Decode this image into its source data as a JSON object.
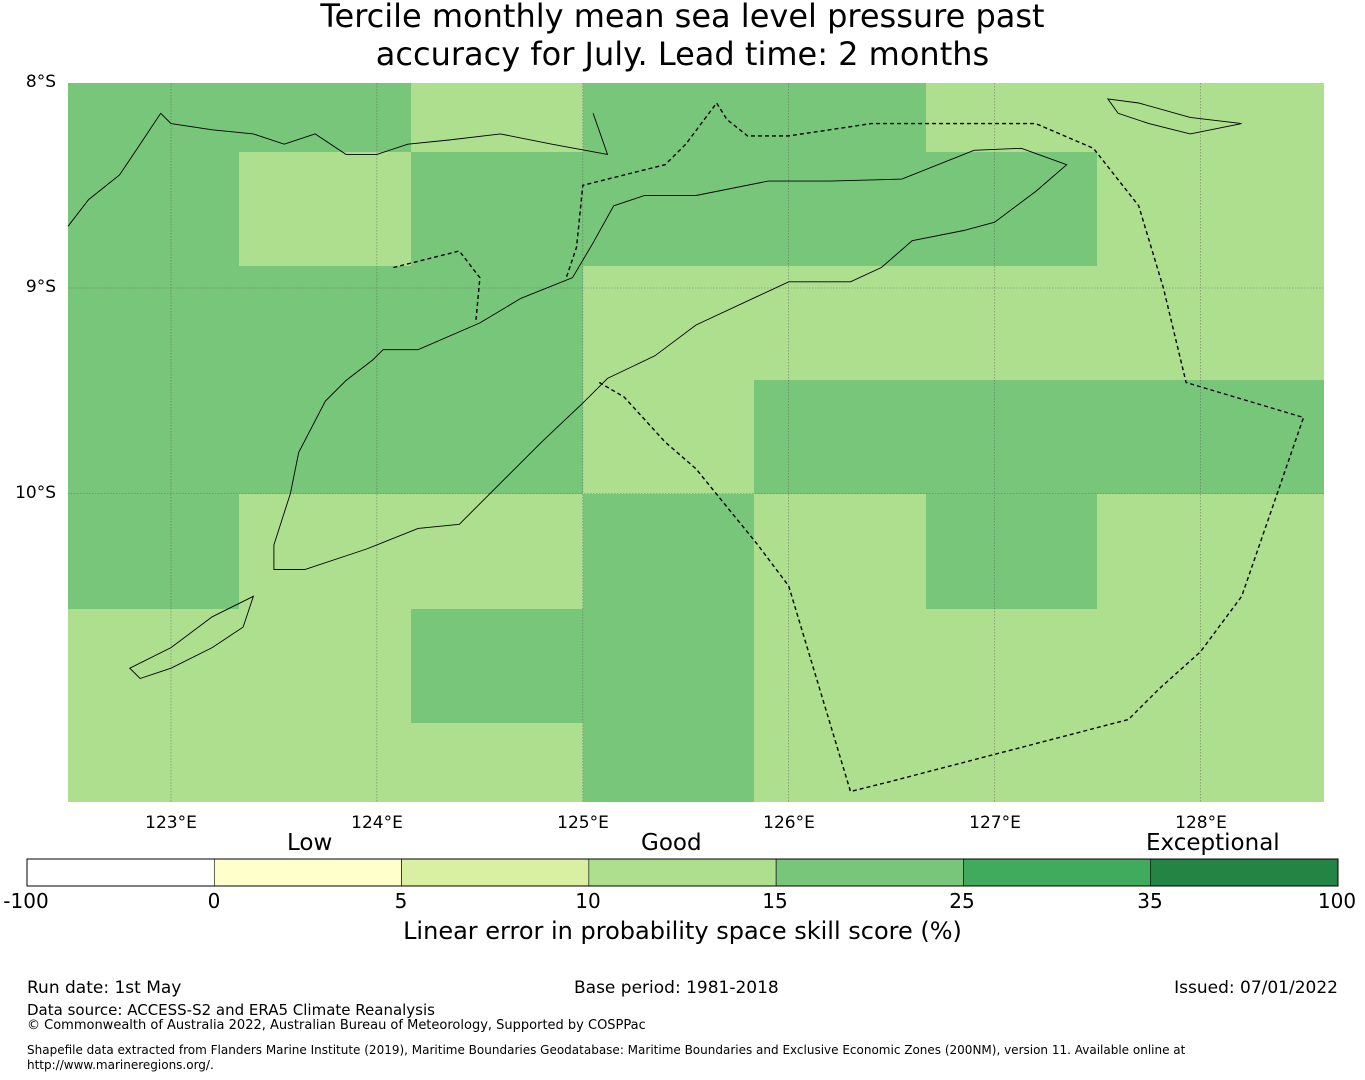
{
  "title": {
    "line1": "Tercile monthly mean sea level pressure past",
    "line2": "accuracy for July. Lead time: 2 months"
  },
  "map": {
    "lat_labels": [
      "8°S",
      "9°S",
      "10°S"
    ],
    "lon_labels": [
      "123°E",
      "124°E",
      "125°E",
      "126°E",
      "127°E",
      "128°E"
    ],
    "extent": {
      "lon_min": 122.5,
      "lon_max": 128.6,
      "lat_max": -8.0,
      "lat_min": -11.5
    },
    "cell_colors": {
      "10-15": "#addf8e",
      "15-25": "#78c679"
    },
    "skill_grid_bins": [
      [
        "15-25",
        "15-25",
        "10-15",
        "15-25",
        "15-25",
        "10-15",
        "10-15"
      ],
      [
        "15-25",
        "10-15",
        "15-25",
        "15-25",
        "15-25",
        "15-25",
        "10-15"
      ],
      [
        "15-25",
        "15-25",
        "15-25",
        "10-15",
        "10-15",
        "10-15",
        "10-15"
      ],
      [
        "15-25",
        "15-25",
        "15-25",
        "10-15",
        "15-25",
        "15-25",
        "15-25"
      ],
      [
        "15-25",
        "10-15",
        "10-15",
        "15-25",
        "10-15",
        "15-25",
        "10-15"
      ],
      [
        "10-15",
        "10-15",
        "15-25",
        "15-25",
        "10-15",
        "10-15",
        "10-15"
      ],
      [
        "10-15",
        "10-15",
        "10-15",
        "15-25",
        "10-15",
        "10-15",
        "10-15"
      ]
    ],
    "eez_boundary": [
      [
        125.08,
        -9.46
      ],
      [
        125.2,
        -9.53
      ],
      [
        125.4,
        -9.75
      ],
      [
        125.55,
        -9.88
      ],
      [
        125.85,
        -10.25
      ],
      [
        126.0,
        -10.45
      ],
      [
        126.3,
        -11.45
      ],
      [
        126.5,
        -11.4
      ],
      [
        127.65,
        -11.1
      ],
      [
        127.8,
        -10.95
      ],
      [
        128.0,
        -10.77
      ],
      [
        128.2,
        -10.5
      ],
      [
        128.5,
        -9.63
      ],
      [
        127.93,
        -9.46
      ],
      [
        127.82,
        -9.0
      ],
      [
        127.7,
        -8.6
      ],
      [
        127.48,
        -8.32
      ],
      [
        127.2,
        -8.2
      ],
      [
        126.4,
        -8.2
      ],
      [
        126.0,
        -8.26
      ],
      [
        125.8,
        -8.26
      ],
      [
        125.7,
        -8.18
      ],
      [
        125.65,
        -8.1
      ],
      [
        125.5,
        -8.3
      ],
      [
        125.4,
        -8.4
      ],
      [
        125.0,
        -8.5
      ],
      [
        124.97,
        -8.8
      ],
      [
        124.92,
        -8.95
      ]
    ],
    "border_segment": [
      [
        124.08,
        -8.9
      ],
      [
        124.4,
        -8.82
      ],
      [
        124.5,
        -8.95
      ],
      [
        124.48,
        -9.17
      ]
    ],
    "timor_outline": [
      [
        124.03,
        -9.3
      ],
      [
        124.2,
        -9.3
      ],
      [
        124.5,
        -9.17
      ],
      [
        124.7,
        -9.05
      ],
      [
        124.95,
        -8.95
      ],
      [
        125.05,
        -8.78
      ],
      [
        125.15,
        -8.6
      ],
      [
        125.3,
        -8.55
      ],
      [
        125.55,
        -8.55
      ],
      [
        125.9,
        -8.48
      ],
      [
        126.2,
        -8.48
      ],
      [
        126.55,
        -8.47
      ],
      [
        126.9,
        -8.33
      ],
      [
        127.13,
        -8.32
      ],
      [
        127.35,
        -8.4
      ],
      [
        127.2,
        -8.53
      ],
      [
        127.0,
        -8.68
      ],
      [
        126.85,
        -8.72
      ],
      [
        126.6,
        -8.77
      ],
      [
        126.45,
        -8.9
      ],
      [
        126.3,
        -8.97
      ],
      [
        126.0,
        -8.97
      ],
      [
        125.85,
        -9.04
      ],
      [
        125.55,
        -9.18
      ],
      [
        125.35,
        -9.33
      ],
      [
        125.12,
        -9.44
      ],
      [
        125.0,
        -9.56
      ],
      [
        124.8,
        -9.75
      ],
      [
        124.6,
        -9.95
      ],
      [
        124.4,
        -10.15
      ],
      [
        124.2,
        -10.17
      ],
      [
        123.95,
        -10.27
      ],
      [
        123.65,
        -10.37
      ],
      [
        123.5,
        -10.37
      ],
      [
        123.5,
        -10.25
      ],
      [
        123.58,
        -10.0
      ],
      [
        123.62,
        -9.8
      ],
      [
        123.75,
        -9.55
      ],
      [
        123.85,
        -9.45
      ],
      [
        123.98,
        -9.35
      ]
    ],
    "north_coast": [
      [
        122.5,
        -8.7
      ],
      [
        122.6,
        -8.57
      ],
      [
        122.75,
        -8.45
      ],
      [
        122.85,
        -8.3
      ],
      [
        122.95,
        -8.15
      ],
      [
        123.0,
        -8.2
      ],
      [
        123.2,
        -8.23
      ],
      [
        123.4,
        -8.25
      ],
      [
        123.55,
        -8.3
      ],
      [
        123.7,
        -8.25
      ],
      [
        123.85,
        -8.35
      ],
      [
        124.0,
        -8.35
      ],
      [
        124.15,
        -8.3
      ],
      [
        124.35,
        -8.28
      ],
      [
        124.6,
        -8.25
      ],
      [
        124.85,
        -8.3
      ],
      [
        125.12,
        -8.35
      ],
      [
        125.05,
        -8.15
      ]
    ],
    "rote_outline": [
      [
        122.8,
        -10.85
      ],
      [
        123.0,
        -10.75
      ],
      [
        123.2,
        -10.6
      ],
      [
        123.4,
        -10.5
      ],
      [
        123.35,
        -10.65
      ],
      [
        123.2,
        -10.75
      ],
      [
        123.0,
        -10.85
      ],
      [
        122.85,
        -10.9
      ]
    ],
    "wetar_outline": [
      [
        127.55,
        -8.08
      ],
      [
        127.7,
        -8.1
      ],
      [
        127.95,
        -8.17
      ],
      [
        128.2,
        -8.2
      ],
      [
        127.95,
        -8.25
      ],
      [
        127.75,
        -8.2
      ],
      [
        127.6,
        -8.15
      ]
    ]
  },
  "legend": {
    "category_labels": {
      "low": "Low",
      "good": "Good",
      "exceptional": "Exceptional"
    },
    "bins": [
      {
        "from": "-100",
        "to": "0",
        "color": "#ffffff"
      },
      {
        "from": "0",
        "to": "5",
        "color": "#ffffcc"
      },
      {
        "from": "5",
        "to": "10",
        "color": "#d9f0a3"
      },
      {
        "from": "10",
        "to": "15",
        "color": "#addf8e"
      },
      {
        "from": "15",
        "to": "25",
        "color": "#78c679"
      },
      {
        "from": "25",
        "to": "35",
        "color": "#41ab5d"
      },
      {
        "from": "35",
        "to": "100",
        "color": "#238443"
      }
    ],
    "tick_labels": [
      "-100",
      "0",
      "5",
      "10",
      "15",
      "25",
      "35",
      "100"
    ],
    "colorbar_label": "Linear error in probability space skill score (%)"
  },
  "footer": {
    "run_date": "Run date: 1st May",
    "base_period": "Base period: 1981-2018",
    "issued": "Issued: 07/01/2022",
    "data_source": "Data source: ACCESS-S2 and ERA5 Climate Reanalysis",
    "copyright": "© Commonwealth of Australia 2022, Australian Bureau of Meteorology, Supported by COSPPac",
    "shapefile_line1": "Shapefile data extracted from Flanders Marine Institute (2019), Maritime Boundaries Geodatabase: Maritime Boundaries and Exclusive Economic Zones (200NM), version 11. Available online at",
    "shapefile_line2": "http://www.marineregions.org/."
  }
}
